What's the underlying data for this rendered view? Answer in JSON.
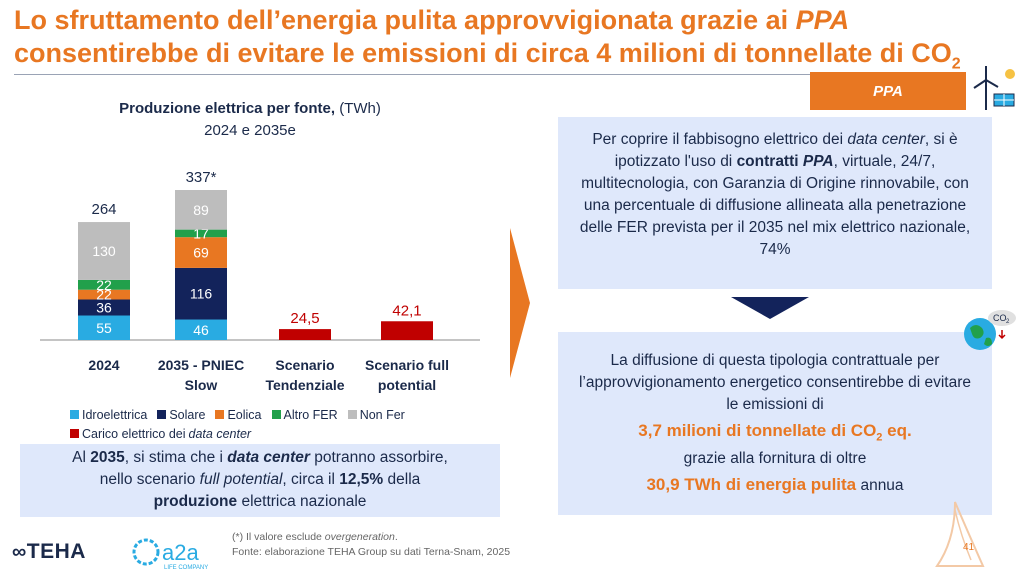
{
  "title": {
    "line1_pre": "Lo sfruttamento dell’energia pulita approvvigionata grazie ai ",
    "line1_em": "PPA",
    "line2_pre": "consentirebbe di evitare le emissioni di circa 4 milioni di tonnellate di CO",
    "line2_sub": "2"
  },
  "badge": {
    "label": "PPA"
  },
  "chart_data": {
    "type": "bar",
    "title_bold": "Produzione elettrica per fonte,",
    "title_unit": "(TWh)",
    "subtitle": "2024 e 2035e",
    "categories": [
      "2024",
      "2035 - PNIEC Slow",
      "Scenario Tendenziale",
      "Scenario full potential"
    ],
    "category_lines": [
      [
        "2024"
      ],
      [
        "2035 - PNIEC",
        "Slow"
      ],
      [
        "Scenario",
        "Tendenziale"
      ],
      [
        "Scenario full",
        "potential"
      ]
    ],
    "totals": [
      "264",
      "337*"
    ],
    "series": [
      {
        "name": "Idroelettrica",
        "color": "#29abe2",
        "values": [
          55,
          46,
          null,
          null
        ]
      },
      {
        "name": "Solare",
        "color": "#13235b",
        "values": [
          36,
          116,
          null,
          null
        ]
      },
      {
        "name": "Eolica",
        "color": "#e87722",
        "values": [
          22,
          69,
          null,
          null
        ]
      },
      {
        "name": "Altro FER",
        "color": "#21a04b",
        "values": [
          22,
          17,
          null,
          null
        ]
      },
      {
        "name": "Non Fer",
        "color": "#bdbdbd",
        "values": [
          130,
          89,
          null,
          null
        ]
      },
      {
        "name": "Carico elettrico dei data center",
        "color": "#c00000",
        "values": [
          null,
          null,
          24.5,
          42.1
        ]
      }
    ],
    "value_labels": [
      "55",
      "36",
      "22",
      "22",
      "130",
      "46",
      "116",
      "69",
      "17",
      "89"
    ],
    "datacenter_labels": [
      "24,5",
      "42,1"
    ],
    "legend_placement": "bottom",
    "grid": false
  },
  "legend": {
    "row1": [
      {
        "label": "Idroelettrica",
        "color": "#29abe2"
      },
      {
        "label": "Solare",
        "color": "#13235b"
      },
      {
        "label": "Eolica",
        "color": "#e87722"
      },
      {
        "label": "Altro FER",
        "color": "#21a04b"
      },
      {
        "label": "Non Fer",
        "color": "#bdbdbd"
      }
    ],
    "row2_label_pre": "Carico elettrico dei ",
    "row2_label_em": "data center",
    "row2_color": "#c00000"
  },
  "summary": {
    "s1": "Al ",
    "s2": "2035",
    "s3": ", si stima che i ",
    "s4": "data center",
    "s5": " potranno assorbire,",
    "s6": "nello scenario ",
    "s7": "full potential",
    "s8": ", circa il ",
    "s9": "12,5%",
    "s10": " della",
    "s11": "produzione",
    "s12": " elettrica nazionale"
  },
  "box_top": {
    "t1": "Per coprire il fabbisogno elettrico dei ",
    "t2": "data center",
    "t3": ", si è ipotizzato l'uso di ",
    "t4": "contratti ",
    "t5": "PPA",
    "t6": ", virtuale, 24/7, multitecnologia, con Garanzia di Origine rinnovabile, con una percentuale di diffusione allineata alla penetrazione delle FER prevista per il 2035 nel mix elettrico nazionale, 74%"
  },
  "box_bottom": {
    "b1": "La diffusione di questa tipologia contrattuale per l’approvvigionamento energetico consentirebbe di evitare le emissioni di",
    "b2": "3,7 milioni di tonnellate di CO",
    "b2_sub": "2",
    "b2_tail": " eq.",
    "b3": "grazie alla fornitura di oltre",
    "b4": "30,9 TWh di energia pulita",
    "b5": " annua"
  },
  "footnote": {
    "f1": "(*) Il valore esclude ",
    "f1_em": "overgeneration",
    "f1_end": ".",
    "f2": "Fonte: elaborazione TEHA Group su dati Terna-Snam, 2025"
  },
  "logos": {
    "teha": "TEHA",
    "a2a": "a2a",
    "a2a_tag": "LIFE COMPANY"
  },
  "icons": {
    "globe_text": "CO",
    "globe_sub": "2"
  },
  "page_number": "41"
}
